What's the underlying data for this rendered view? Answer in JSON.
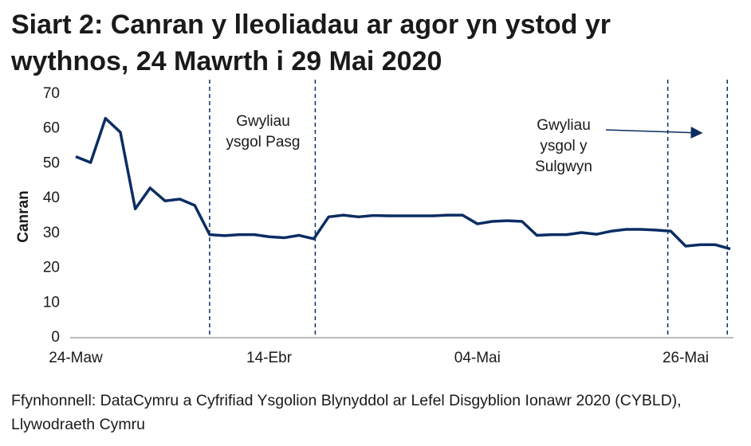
{
  "chart_data": {
    "type": "line",
    "title": "Siart 2: Canran y lleoliadau ar agor yn ystod yr wythnos, 24 Mawrth i 29 Mai 2020",
    "ylabel": "Canran",
    "source": "Ffynhonnell: DataCymru a Cyfrifiad Ysgolion Blynyddol ar Lefel Disgyblion Ionawr 2020 (CYBLD), Llywodraeth Cymru",
    "categories": [
      "24-Maw",
      null,
      null,
      null,
      null,
      null,
      null,
      null,
      null,
      null,
      null,
      null,
      null,
      "14-Ebr",
      null,
      null,
      null,
      null,
      null,
      null,
      null,
      null,
      null,
      null,
      null,
      null,
      null,
      "04-Mai",
      null,
      null,
      null,
      null,
      null,
      null,
      null,
      null,
      null,
      null,
      null,
      null,
      null,
      "26-Mai",
      null,
      null,
      null
    ],
    "series": [
      {
        "name": "Canran",
        "color": "#0b2d63",
        "values": [
          52,
          50.3,
          63,
          59,
          37,
          43,
          39.3,
          39.8,
          38,
          29.6,
          29.3,
          29.6,
          29.6,
          29,
          28.7,
          29.4,
          28.4,
          34.7,
          35.2,
          34.7,
          35.1,
          35,
          35,
          35,
          35,
          35.2,
          35.2,
          32.7,
          33.4,
          33.6,
          33.4,
          29.4,
          29.6,
          29.6,
          30.2,
          29.7,
          30.6,
          31.1,
          31.1,
          30.9,
          30.6,
          26.3,
          26.7,
          26.7,
          25.5
        ]
      }
    ],
    "ylim": [
      0,
      70
    ],
    "yticks": [
      0,
      10,
      20,
      30,
      40,
      50,
      60,
      70
    ],
    "holiday_lines": [
      9,
      16.1,
      39.8,
      43.8
    ],
    "annotations": [
      {
        "lines": [
          "Gwyliau",
          "ysgol Pasg"
        ]
      },
      {
        "lines": [
          "Gwyliau",
          "ysgol y",
          "Sulgwyn"
        ]
      }
    ]
  }
}
